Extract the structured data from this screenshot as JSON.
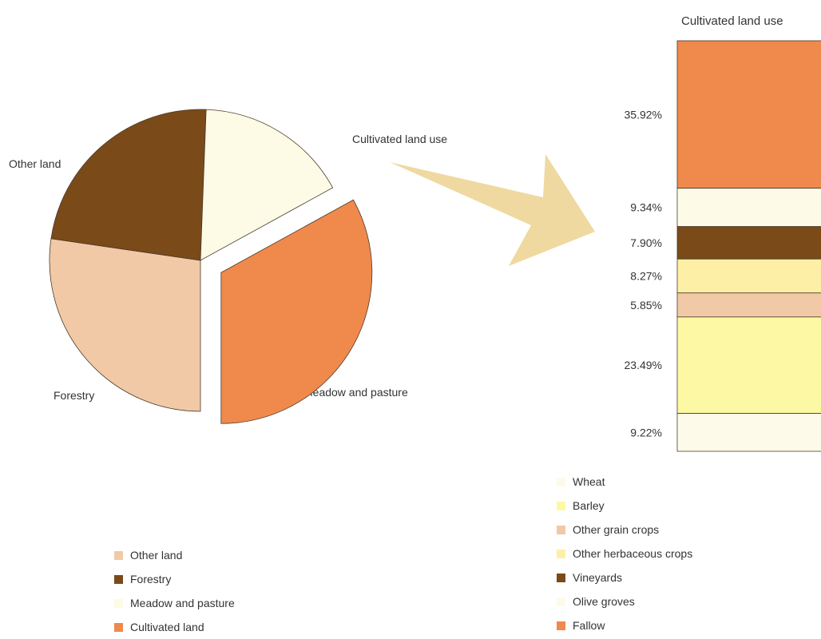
{
  "chart_data": [
    {
      "type": "pie",
      "title": "",
      "slices": [
        {
          "label": "Other land",
          "value": 27.3,
          "color": "#f2c9a6"
        },
        {
          "label": "Forestry",
          "value": 23.3,
          "color": "#7a4a19"
        },
        {
          "label": "Meadow and pasture",
          "value": 16.4,
          "color": "#fdfbe5"
        },
        {
          "label": "Cultivated land use",
          "value": 33.0,
          "color": "#f0894c",
          "exploded": true
        }
      ],
      "legend": {
        "position": "bottom-left",
        "items": [
          {
            "label": "Other land",
            "color": "#f2c9a6"
          },
          {
            "label": "Forestry",
            "color": "#7a4a19"
          },
          {
            "label": "Meadow and pasture",
            "color": "#fdfbe5"
          },
          {
            "label": "Cultivated land",
            "color": "#f0894c"
          }
        ]
      }
    },
    {
      "type": "bar",
      "stacked": true,
      "title": "Cultivated land use",
      "segments": [
        {
          "name": "Fallow",
          "value": 35.92,
          "label": "35.92%",
          "color": "#f0894c"
        },
        {
          "name": "Olive groves",
          "value": 9.34,
          "label": "9.34%",
          "color": "#fdfbe8"
        },
        {
          "name": "Vineyards",
          "value": 7.9,
          "label": "7.90%",
          "color": "#7a4a19"
        },
        {
          "name": "Other herbaceous crops",
          "value": 8.27,
          "label": "8.27%",
          "color": "#fdf0a6"
        },
        {
          "name": "Other grain crops",
          "value": 5.85,
          "label": "5.85%",
          "color": "#f2c9a6"
        },
        {
          "name": "Barley",
          "value": 23.49,
          "label": "23.49%",
          "color": "#fdf8a3"
        },
        {
          "name": "Wheat",
          "value": 9.22,
          "label": "9.22%",
          "color": "#fdfaea"
        }
      ],
      "legend": {
        "position": "bottom",
        "items": [
          {
            "label": "Wheat",
            "color": "#fdfaea"
          },
          {
            "label": "Barley",
            "color": "#fdf8a3"
          },
          {
            "label": "Other grain crops",
            "color": "#f2c9a6"
          },
          {
            "label": "Other herbaceous crops",
            "color": "#fdf0a6"
          },
          {
            "label": "Vineyards",
            "color": "#7a4a19"
          },
          {
            "label": "Olive groves",
            "color": "#fdfbe8"
          },
          {
            "label": "Fallow",
            "color": "#f0894c"
          }
        ]
      }
    }
  ],
  "colors": {
    "outline": "#4a3a2a",
    "arrow": "#efd9a0",
    "text": "#333333"
  }
}
